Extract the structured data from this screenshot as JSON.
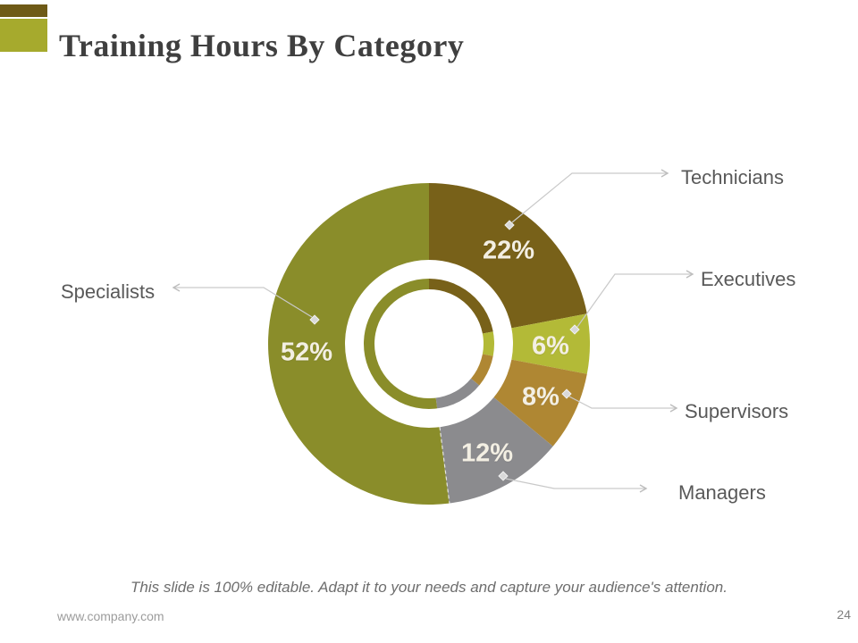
{
  "slide": {
    "title": "Training Hours By Category",
    "accent": {
      "top_color": "#6e5a16",
      "bottom_color": "#a6aa2d"
    }
  },
  "chart_data": {
    "type": "pie",
    "subtype": "donut-with-white-ring-overlay",
    "title": "Training Hours By Category",
    "direction": "clockwise",
    "start_angle_deg": 0,
    "categories": [
      "Technicians",
      "Executives",
      "Supervisors",
      "Managers",
      "Specialists"
    ],
    "values": [
      22,
      6,
      8,
      12,
      52
    ],
    "unit": "%",
    "data_labels": [
      "22%",
      "6%",
      "8%",
      "12%",
      "52%"
    ],
    "colors": [
      "#786119",
      "#b3ba37",
      "#af8733",
      "#8b8b8e",
      "#8a8d2a"
    ],
    "data_label_color": "#f3efe3",
    "category_label_color": "#595959",
    "leader_line_color": "#c9c9c9",
    "legend": "none"
  },
  "footer": {
    "note": "This slide is 100% editable. Adapt it to your needs and capture your audience's attention.",
    "website": "www.company.com",
    "page_number": "24"
  }
}
